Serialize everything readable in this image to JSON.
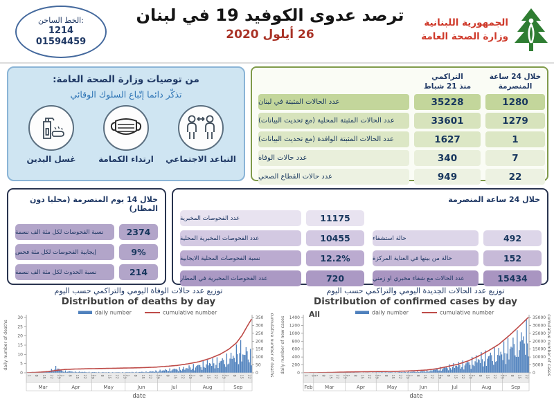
{
  "header": {
    "hotline": {
      "label": "الخط الساخن:",
      "number1": "1214",
      "number2": "01594459"
    },
    "title": "ترصد عدوى الكوفيد 19 في لبنان",
    "date": "26 أيلول 2020",
    "ministry": {
      "line1": "الجمهورية اللبنانية",
      "line2": "وزارة الصحة العامة"
    }
  },
  "recommendations": {
    "title": "من توصيات وزارة الصحة العامة:",
    "subtitle": "تذكّر دائما إتّباع السلوك الوقائي",
    "items": [
      {
        "label": "التباعد الاجتماعي",
        "icon": "social-distancing-icon"
      },
      {
        "label": "ارتداء الكمامة",
        "icon": "face-mask-icon"
      },
      {
        "label": "غسل اليدين",
        "icon": "hand-washing-icon"
      }
    ]
  },
  "cases_table": {
    "header_cumulative": {
      "line1": "التراكمي",
      "line2": "منذ 21 شباط"
    },
    "header_last24": {
      "line1": "خلال 24 ساعة",
      "line2": "المنصرمة"
    },
    "rows": [
      {
        "label": "عدد الحالات المثبتة في لبنان",
        "cumulative": "35228",
        "last24": "1280"
      },
      {
        "label": "عدد الحالات المثبتة المحلية (مع تحديث البيانات)",
        "cumulative": "33601",
        "last24": "1279"
      },
      {
        "label": "عدد الحالات المثبتة الوافدة (مع تحديث البيانات)",
        "cumulative": "1627",
        "last24": "1"
      },
      {
        "label": "عدد حالات الوفاة",
        "cumulative": "340",
        "last24": "7"
      },
      {
        "label": "عدد حالات القطاع الصحي",
        "cumulative": "949",
        "last24": "22"
      }
    ]
  },
  "fourteen_day_box": {
    "title": "خلال 14 يوم المنصرمة (محليا دون المطار)",
    "rows": [
      {
        "label": "نسبة الفحوصات لكل مئة الف نسمة",
        "value": "2374"
      },
      {
        "label": "إيجابية الفحوصات لكل مئة فحص",
        "value": "9%"
      },
      {
        "label": "نسبة الحدوث لكل مئة الف نسمة",
        "value": "214"
      }
    ]
  },
  "last24_box": {
    "title": "خلال 24 ساعة المنصرمة",
    "tests_rows": [
      {
        "label": "عدد الفحوصات المخبرية",
        "value": "11175"
      },
      {
        "label": "عدد الفحوصات المخبرية المحلية",
        "value": "10455"
      },
      {
        "label": "نسبة الفحوصات المحلية الايجابية",
        "value": "12.2%"
      },
      {
        "label": "عدد الفحوصات المخبرية في المطار",
        "value": "720"
      }
    ],
    "cases_rows": [
      {
        "label": "حالة استشفاء",
        "value": "492"
      },
      {
        "label": "حالة من بينها في العناية المركزة",
        "value": "152"
      },
      {
        "label": "عدد الحالات مع شفاء مخبري او زمني",
        "value": "15434"
      }
    ]
  },
  "colors": {
    "bar": "#4f81bd",
    "line": "#be4b48",
    "navy": "#1f3864",
    "red_text": "#cf3a2b",
    "green_row": "#c3d69b",
    "lavender": "#b2a5c9",
    "blue_box": "#cfe5f2"
  },
  "chart_data": [
    {
      "type": "bar+line",
      "title_ar": "توزيع عدد حالات  الوفاة اليومي والتراكمي حسب اليوم",
      "title_en": "Distribution of deaths by day",
      "legend": [
        "daily number",
        "cumulative number"
      ],
      "annotation": "",
      "xlabel": "date",
      "ylabel_left": "daily number of deaths",
      "ylabel_right": "cumulative number of deaths",
      "y_left": {
        "min": 0,
        "max": 30,
        "step": 5
      },
      "y_right": {
        "min": 0,
        "max": 350,
        "step": 50
      },
      "months": [
        {
          "name": "Mar",
          "days": 31
        },
        {
          "name": "Apr",
          "days": 30
        },
        {
          "name": "May",
          "days": 31
        },
        {
          "name": "Jun",
          "days": 30
        },
        {
          "name": "Jul",
          "days": 31
        },
        {
          "name": "Aug",
          "days": 31
        },
        {
          "name": "Sep",
          "days": 26
        }
      ],
      "day_ticks": [
        1,
        8,
        15,
        22,
        29
      ],
      "daily_points": [
        [
          0,
          0.3
        ],
        [
          14,
          0.8
        ],
        [
          20,
          1.2
        ],
        [
          26,
          3.0
        ],
        [
          28,
          4.5
        ],
        [
          32,
          1.5
        ],
        [
          45,
          0.8
        ],
        [
          60,
          0.5
        ],
        [
          75,
          0.4
        ],
        [
          90,
          0.4
        ],
        [
          105,
          0.6
        ],
        [
          115,
          0.9
        ],
        [
          122,
          1.5
        ],
        [
          130,
          2.2
        ],
        [
          138,
          2.8
        ],
        [
          146,
          3.2
        ],
        [
          153,
          4.5
        ],
        [
          160,
          5.5
        ],
        [
          167,
          7.0
        ],
        [
          174,
          8.0
        ],
        [
          181,
          9.0
        ],
        [
          188,
          11.0
        ],
        [
          193,
          13.0
        ],
        [
          198,
          19.0
        ],
        [
          202,
          14.0
        ],
        [
          206,
          17.0
        ],
        [
          209,
          11.0
        ]
      ],
      "cumulative_points": [
        [
          0,
          0
        ],
        [
          10,
          3
        ],
        [
          20,
          8
        ],
        [
          28,
          16
        ],
        [
          35,
          21
        ],
        [
          45,
          24
        ],
        [
          60,
          26
        ],
        [
          75,
          28
        ],
        [
          90,
          30
        ],
        [
          105,
          32
        ],
        [
          120,
          36
        ],
        [
          130,
          41
        ],
        [
          140,
          47
        ],
        [
          150,
          57
        ],
        [
          160,
          70
        ],
        [
          170,
          90
        ],
        [
          180,
          118
        ],
        [
          188,
          150
        ],
        [
          195,
          190
        ],
        [
          200,
          235
        ],
        [
          205,
          295
        ],
        [
          209,
          340
        ]
      ],
      "cumulative_total": 340
    },
    {
      "type": "bar+line",
      "title_ar": "توزيع عدد الحالات الجديدة اليومي والتراكمي حسب اليوم",
      "title_en": "Distribution of confirmed cases by day",
      "legend": [
        "daily number",
        "cumulative number"
      ],
      "annotation": "All",
      "xlabel": "date",
      "ylabel_left": "daily number of new cases",
      "ylabel_right": "cumulative number of cases",
      "y_left": {
        "min": 0,
        "max": 1400,
        "step": 200
      },
      "y_right": {
        "min": 0,
        "max": 35000,
        "step": 5000
      },
      "months": [
        {
          "name": "Feb",
          "days": 10
        },
        {
          "name": "Mar",
          "days": 31
        },
        {
          "name": "Apr",
          "days": 30
        },
        {
          "name": "May",
          "days": 31
        },
        {
          "name": "Jun",
          "days": 30
        },
        {
          "name": "Jul",
          "days": 31
        },
        {
          "name": "Aug",
          "days": 31
        },
        {
          "name": "Sep",
          "days": 26
        }
      ],
      "day_ticks": [
        1,
        8,
        15,
        22,
        29
      ],
      "daily_points": [
        [
          0,
          1
        ],
        [
          8,
          4
        ],
        [
          16,
          10
        ],
        [
          24,
          16
        ],
        [
          32,
          18
        ],
        [
          40,
          22
        ],
        [
          48,
          12
        ],
        [
          56,
          8
        ],
        [
          64,
          10
        ],
        [
          72,
          16
        ],
        [
          80,
          22
        ],
        [
          88,
          18
        ],
        [
          96,
          25
        ],
        [
          104,
          35
        ],
        [
          112,
          45
        ],
        [
          120,
          65
        ],
        [
          128,
          120
        ],
        [
          136,
          170
        ],
        [
          144,
          230
        ],
        [
          152,
          290
        ],
        [
          160,
          350
        ],
        [
          168,
          460
        ],
        [
          176,
          560
        ],
        [
          184,
          620
        ],
        [
          190,
          680
        ],
        [
          196,
          820
        ],
        [
          202,
          950
        ],
        [
          208,
          1080
        ],
        [
          213,
          1200
        ],
        [
          217,
          1350
        ],
        [
          219,
          1280
        ]
      ],
      "cumulative_points": [
        [
          0,
          0
        ],
        [
          10,
          40
        ],
        [
          20,
          120
        ],
        [
          30,
          270
        ],
        [
          40,
          480
        ],
        [
          50,
          600
        ],
        [
          60,
          700
        ],
        [
          70,
          760
        ],
        [
          80,
          840
        ],
        [
          90,
          950
        ],
        [
          100,
          1120
        ],
        [
          110,
          1400
        ],
        [
          120,
          1800
        ],
        [
          130,
          2600
        ],
        [
          140,
          4000
        ],
        [
          150,
          5400
        ],
        [
          160,
          7500
        ],
        [
          170,
          10500
        ],
        [
          180,
          14000
        ],
        [
          190,
          18000
        ],
        [
          200,
          23500
        ],
        [
          210,
          29500
        ],
        [
          219,
          35228
        ]
      ],
      "cumulative_total": 35228
    }
  ]
}
